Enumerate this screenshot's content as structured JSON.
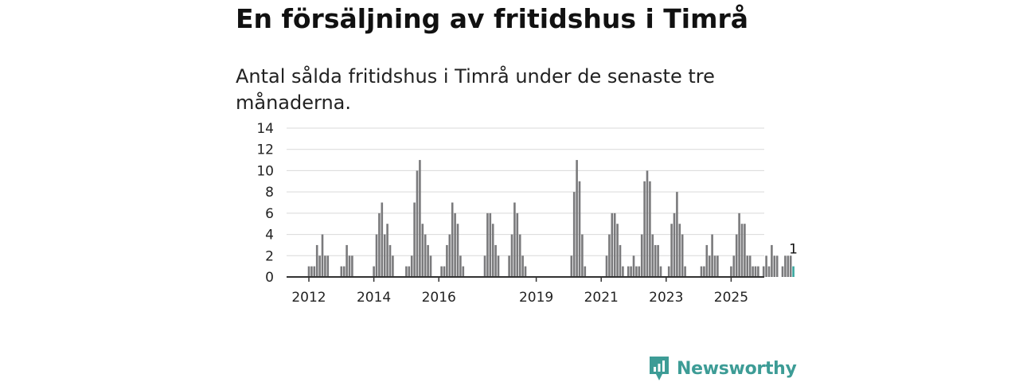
{
  "title": "En försäljning av fritidshus i Timrå",
  "subtitle": "Antal sålda fritidshus i Timrå under de senaste tre månaderna.",
  "brand": {
    "name": "Newsworthy",
    "icon": "newsworthy-logo-icon",
    "color": "#3d9c96"
  },
  "colors": {
    "bar": "#7a7a7c",
    "highlight": "#3aa8a0",
    "grid": "#d9d9d9",
    "axis": "#333333"
  },
  "chart_data": {
    "type": "bar",
    "ylim": [
      0,
      14
    ],
    "yticks": [
      0,
      2,
      4,
      6,
      8,
      10,
      12,
      14
    ],
    "x_start": "2012-01",
    "xtick_labels": [
      {
        "label": "2012",
        "date": "2012-01"
      },
      {
        "label": "2014",
        "date": "2014-01"
      },
      {
        "label": "2016",
        "date": "2016-01"
      },
      {
        "label": "2019",
        "date": "2019-01"
      },
      {
        "label": "2021",
        "date": "2021-01"
      },
      {
        "label": "2023",
        "date": "2023-01"
      },
      {
        "label": "2025",
        "date": "2025-01"
      }
    ],
    "values": [
      1,
      1,
      1,
      3,
      2,
      4,
      2,
      2,
      0,
      0,
      0,
      0,
      1,
      1,
      3,
      2,
      2,
      0,
      0,
      0,
      0,
      0,
      0,
      0,
      1,
      4,
      6,
      7,
      4,
      5,
      3,
      2,
      0,
      0,
      0,
      0,
      1,
      1,
      2,
      7,
      10,
      11,
      5,
      4,
      3,
      2,
      0,
      0,
      0,
      1,
      1,
      3,
      4,
      7,
      6,
      5,
      2,
      1,
      0,
      0,
      0,
      0,
      0,
      0,
      0,
      2,
      6,
      6,
      5,
      3,
      2,
      0,
      0,
      0,
      2,
      4,
      7,
      6,
      4,
      2,
      1,
      0,
      0,
      0,
      0,
      0,
      0,
      0,
      0,
      0,
      0,
      0,
      0,
      0,
      0,
      0,
      0,
      2,
      8,
      11,
      9,
      4,
      1,
      0,
      0,
      0,
      0,
      0,
      0,
      0,
      2,
      4,
      6,
      6,
      5,
      3,
      1,
      0,
      1,
      1,
      2,
      1,
      1,
      4,
      9,
      10,
      9,
      4,
      3,
      3,
      1,
      0,
      0,
      1,
      5,
      6,
      8,
      5,
      4,
      1,
      0,
      0,
      0,
      0,
      0,
      1,
      1,
      3,
      2,
      4,
      2,
      2,
      0,
      0,
      0,
      0,
      1,
      2,
      4,
      6,
      5,
      5,
      2,
      2,
      1,
      1,
      1,
      0,
      1,
      2,
      1,
      3,
      2,
      2,
      0,
      1,
      2,
      2,
      2,
      1
    ],
    "highlight_index": 179,
    "annotation": "1"
  }
}
